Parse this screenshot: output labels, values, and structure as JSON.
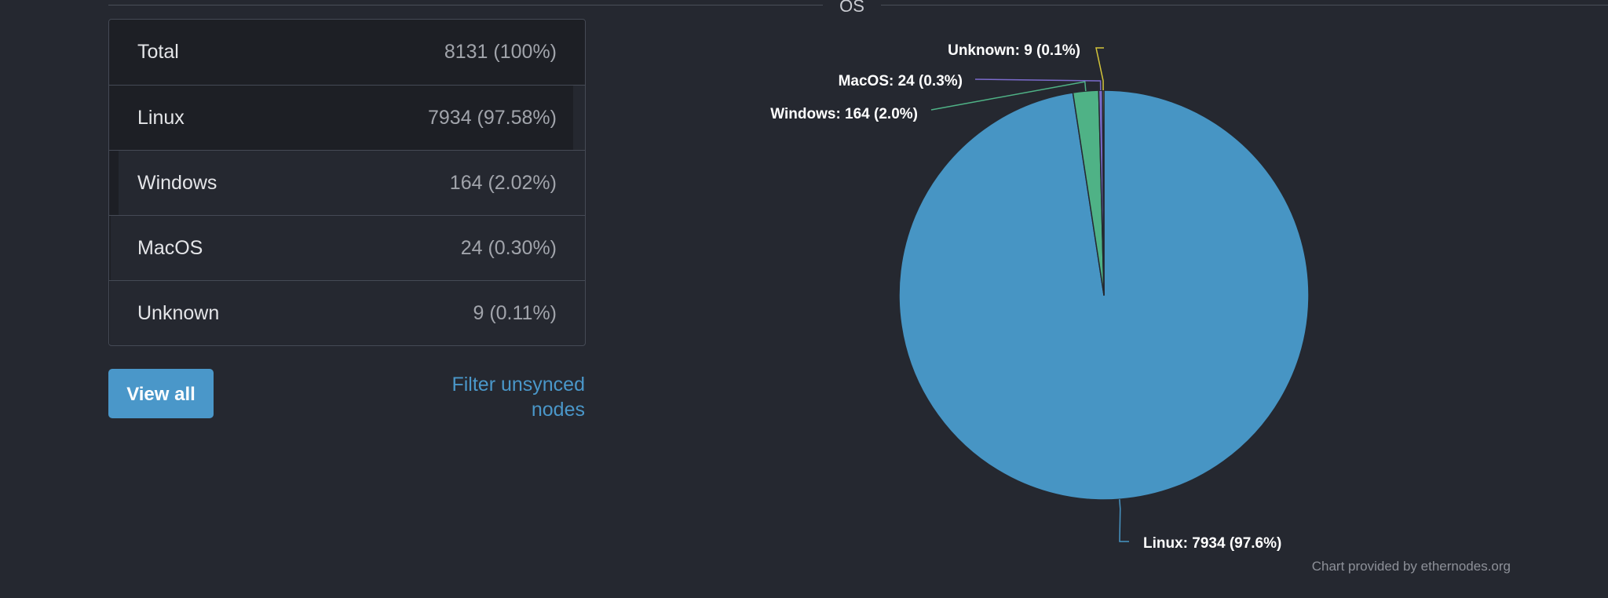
{
  "section": {
    "title": "OS"
  },
  "table": {
    "rows": [
      {
        "label": "Total",
        "value": "8131 (100%)"
      },
      {
        "label": "Linux",
        "value": "7934 (97.58%)"
      },
      {
        "label": "Windows",
        "value": "164 (2.02%)"
      },
      {
        "label": "MacOS",
        "value": "24 (0.30%)"
      },
      {
        "label": "Unknown",
        "value": "9 (0.11%)"
      }
    ]
  },
  "actions": {
    "view_all_label": "View all",
    "filter_label": "Filter unsynced nodes"
  },
  "chart_data": {
    "type": "pie",
    "slices": [
      {
        "name": "Linux",
        "value": 7934,
        "label": "Linux: 7934 (97.6%)",
        "color": "#4795c4"
      },
      {
        "name": "Windows",
        "value": 164,
        "label": "Windows: 164 (2.0%)",
        "color": "#4fb286"
      },
      {
        "name": "MacOS",
        "value": 24,
        "label": "MacOS: 24 (0.3%)",
        "color": "#7b6bcc"
      },
      {
        "name": "Unknown",
        "value": 9,
        "label": "Unknown: 9 (0.1%)",
        "color": "#d3c43a"
      }
    ],
    "total": 8131
  },
  "credit": "Chart provided by ethernodes.org",
  "colors": {
    "background": "#252830",
    "accent": "#4a97c9",
    "row_bar": "#1d1f25",
    "border": "#454a55"
  }
}
